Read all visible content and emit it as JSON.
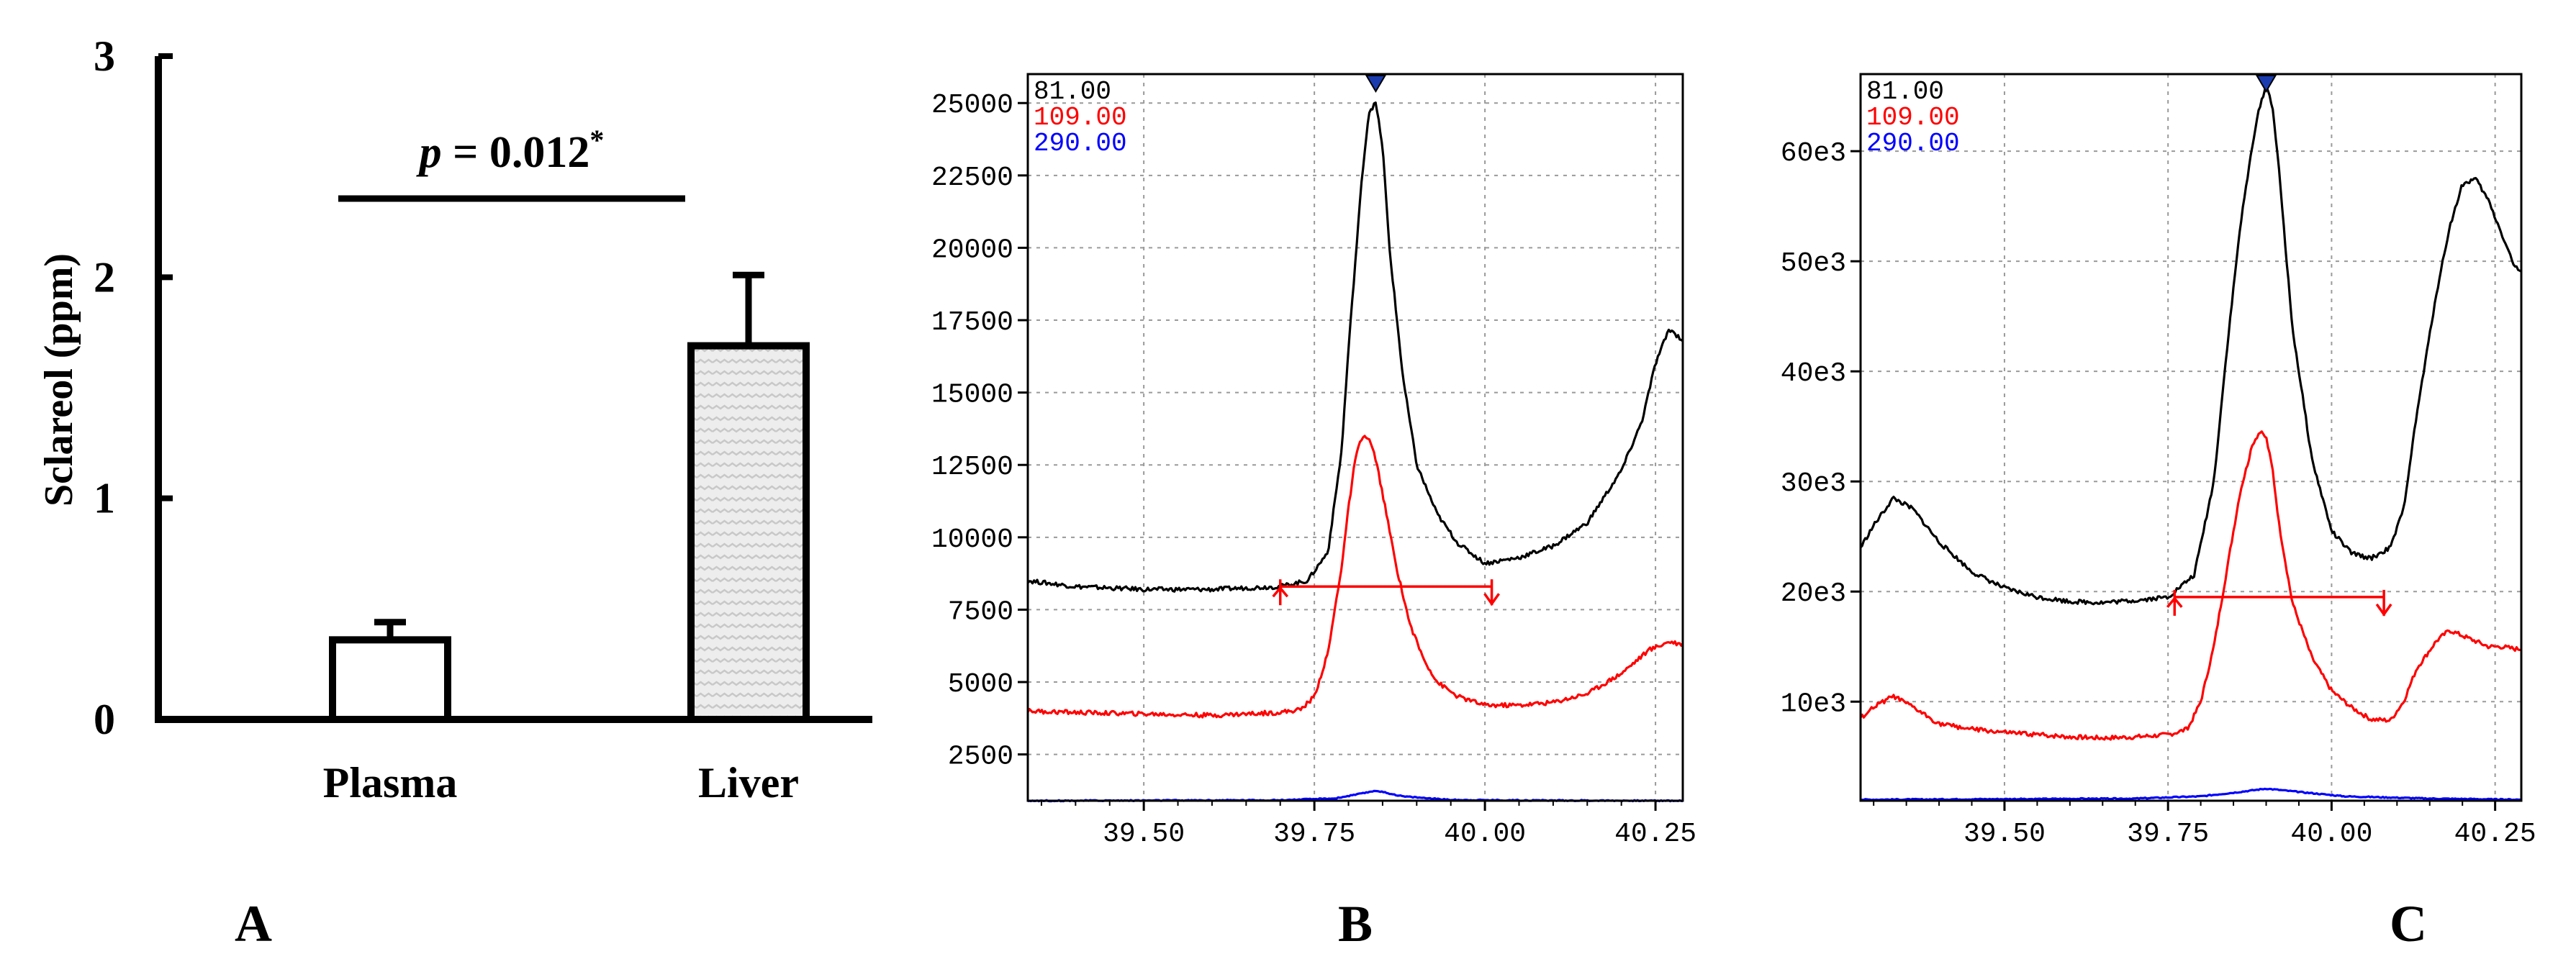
{
  "panels": {
    "a_label": "A",
    "b_label": "B",
    "c_label": "C"
  },
  "colors": {
    "trace_81": "#000000",
    "trace_109": "#ff0000",
    "trace_290": "#0000ff",
    "peak_marker": "#1a3bb0",
    "grid": "#9a9a9a",
    "bar_hatch": "#c8c8c8"
  },
  "chart_data": [
    {
      "type": "bar",
      "categories": [
        "Plasma",
        "Liver"
      ],
      "values": [
        0.36,
        1.69
      ],
      "errors": [
        0.08,
        0.32
      ],
      "ylabel": "Sclareol (ppm)",
      "ylim": [
        0,
        3
      ],
      "yticks": [
        "0",
        "1",
        "2",
        "3"
      ],
      "annotation": {
        "prefix": "p",
        "text": " = 0.012",
        "suffix": "*"
      },
      "grid": false,
      "bar_fill": [
        "plain",
        "hatched"
      ]
    },
    {
      "type": "line",
      "legend": [
        "81.00",
        "109.00",
        "290.00"
      ],
      "legend_position": "top-left",
      "grid": true,
      "xlim": [
        39.33,
        40.29
      ],
      "ylim": [
        900,
        26000
      ],
      "xticks": [
        {
          "value": 39.5,
          "label": "39.50"
        },
        {
          "value": 39.75,
          "label": "39.75"
        },
        {
          "value": 40.0,
          "label": "40.00"
        },
        {
          "value": 40.25,
          "label": "40.25"
        }
      ],
      "yticks": [
        {
          "value": 2500,
          "label": "2500"
        },
        {
          "value": 5000,
          "label": "5000"
        },
        {
          "value": 7500,
          "label": "7500"
        },
        {
          "value": 10000,
          "label": "10000"
        },
        {
          "value": 12500,
          "label": "12500"
        },
        {
          "value": 15000,
          "label": "15000"
        },
        {
          "value": 17500,
          "label": "17500"
        },
        {
          "value": 20000,
          "label": "20000"
        },
        {
          "value": 22500,
          "label": "22500"
        },
        {
          "value": 25000,
          "label": "25000"
        }
      ],
      "series": [
        {
          "name": "81.00",
          "color": "#000000",
          "x": [
            39.33,
            39.4,
            39.5,
            39.6,
            39.7,
            39.74,
            39.77,
            39.79,
            39.8,
            39.81,
            39.82,
            39.83,
            39.84,
            39.85,
            39.86,
            39.88,
            39.9,
            39.93,
            39.96,
            40.0,
            40.05,
            40.1,
            40.15,
            40.2,
            40.23,
            40.25,
            40.27,
            40.29
          ],
          "y": [
            8500,
            8300,
            8200,
            8200,
            8300,
            8500,
            9500,
            13000,
            16500,
            19500,
            22500,
            24700,
            25000,
            23500,
            20000,
            15500,
            12500,
            10800,
            9800,
            9100,
            9300,
            9700,
            10500,
            12300,
            14000,
            16000,
            17200,
            16800
          ]
        },
        {
          "name": "109.00",
          "color": "#ff0000",
          "x": [
            39.33,
            39.4,
            39.5,
            39.6,
            39.7,
            39.73,
            39.75,
            39.77,
            39.79,
            39.8,
            39.81,
            39.82,
            39.83,
            39.84,
            39.85,
            39.87,
            39.89,
            39.91,
            39.93,
            39.96,
            40.0,
            40.05,
            40.1,
            40.15,
            40.2,
            40.24,
            40.27,
            40.29
          ],
          "y": [
            4000,
            3950,
            3900,
            3850,
            3950,
            4050,
            4500,
            6000,
            9000,
            11000,
            12700,
            13500,
            13400,
            12700,
            11500,
            9000,
            7000,
            5800,
            5000,
            4500,
            4200,
            4200,
            4300,
            4600,
            5300,
            6100,
            6400,
            6300
          ]
        },
        {
          "name": "290.00",
          "color": "#0000ff",
          "x": [
            39.33,
            39.7,
            39.78,
            39.82,
            39.84,
            39.88,
            39.95,
            40.1,
            40.29
          ],
          "y": [
            900,
            920,
            980,
            1150,
            1250,
            1050,
            930,
            910,
            900
          ]
        }
      ],
      "peak_marker_x": 39.84,
      "baseline": {
        "x_start": 39.7,
        "x_end": 40.01,
        "y": 8300
      }
    },
    {
      "type": "line",
      "legend": [
        "81.00",
        "109.00",
        "290.00"
      ],
      "legend_position": "top-left",
      "grid": true,
      "xlim": [
        39.28,
        40.29
      ],
      "ylim": [
        1000,
        67000
      ],
      "xticks": [
        {
          "value": 39.5,
          "label": "39.50"
        },
        {
          "value": 39.75,
          "label": "39.75"
        },
        {
          "value": 40.0,
          "label": "40.00"
        },
        {
          "value": 40.25,
          "label": "40.25"
        }
      ],
      "yticks": [
        {
          "value": 10000,
          "label": "10e3"
        },
        {
          "value": 20000,
          "label": "20e3"
        },
        {
          "value": 30000,
          "label": "30e3"
        },
        {
          "value": 40000,
          "label": "40e3"
        },
        {
          "value": 50000,
          "label": "50e3"
        },
        {
          "value": 60000,
          "label": "60e3"
        }
      ],
      "series": [
        {
          "name": "81.00",
          "color": "#000000",
          "x": [
            39.28,
            39.3,
            39.33,
            39.36,
            39.4,
            39.45,
            39.5,
            39.55,
            39.6,
            39.65,
            39.7,
            39.75,
            39.79,
            39.82,
            39.84,
            39.86,
            39.88,
            39.89,
            39.9,
            39.91,
            39.92,
            39.94,
            39.97,
            40.0,
            40.03,
            40.06,
            40.09,
            40.11,
            40.13,
            40.16,
            40.18,
            40.2,
            40.22,
            40.24,
            40.26,
            40.28,
            40.29
          ],
          "y": [
            24000,
            26000,
            28500,
            27500,
            24500,
            21800,
            20300,
            19500,
            19100,
            19000,
            19200,
            19500,
            21500,
            30000,
            42000,
            53000,
            61000,
            64000,
            66000,
            64000,
            58000,
            44000,
            32000,
            25500,
            23500,
            23000,
            24000,
            27500,
            36000,
            47000,
            53000,
            57000,
            57500,
            55500,
            52500,
            49500,
            49000
          ]
        },
        {
          "name": "109.00",
          "color": "#ff0000",
          "x": [
            39.28,
            39.3,
            39.33,
            39.36,
            39.4,
            39.45,
            39.5,
            39.55,
            39.6,
            39.65,
            39.7,
            39.75,
            39.78,
            39.8,
            39.82,
            39.84,
            39.86,
            39.88,
            39.89,
            39.9,
            39.91,
            39.92,
            39.94,
            39.97,
            40.0,
            40.03,
            40.06,
            40.09,
            40.11,
            40.13,
            40.16,
            40.18,
            40.2,
            40.22,
            40.24,
            40.26,
            40.28,
            40.29
          ],
          "y": [
            8500,
            9500,
            10500,
            9500,
            8000,
            7500,
            7200,
            7000,
            6800,
            6700,
            6800,
            7000,
            7500,
            10000,
            15000,
            22000,
            29000,
            33500,
            34500,
            34000,
            31000,
            26000,
            19000,
            14000,
            11000,
            9500,
            8400,
            8300,
            10000,
            13000,
            15500,
            16500,
            16000,
            15500,
            15000,
            15000,
            14800,
            14800
          ]
        },
        {
          "name": "290.00",
          "color": "#0000ff",
          "x": [
            39.28,
            39.7,
            39.8,
            39.86,
            39.9,
            39.95,
            40.02,
            40.15,
            40.29
          ],
          "y": [
            1100,
            1200,
            1400,
            1800,
            2100,
            1800,
            1400,
            1200,
            1100
          ]
        }
      ],
      "peak_marker_x": 39.9,
      "baseline": {
        "x_start": 39.76,
        "x_end": 40.08,
        "y": 19500
      }
    }
  ]
}
